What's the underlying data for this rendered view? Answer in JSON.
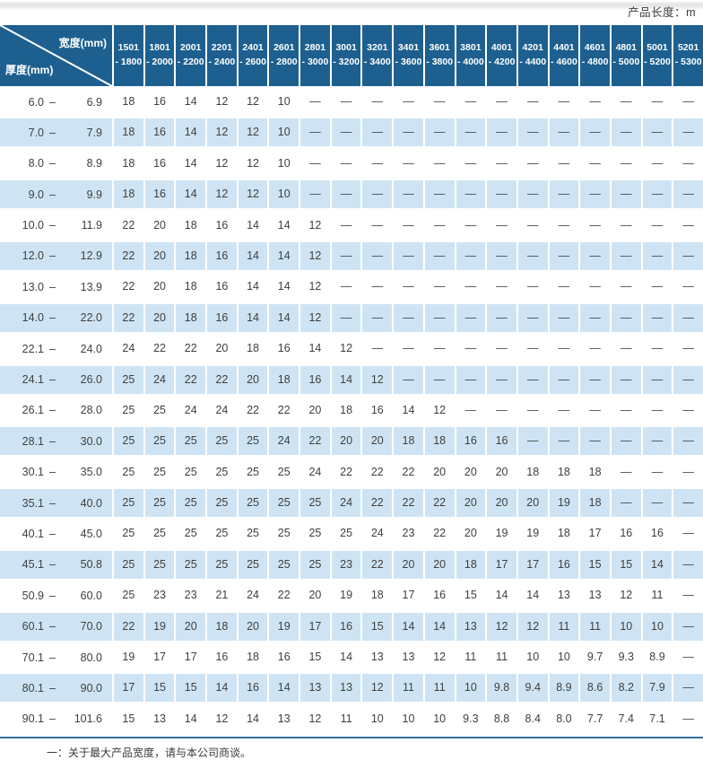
{
  "page": {
    "length_note": "产品长度：m",
    "footnote": "一：关于最大产品宽度，请与本公司商谈。"
  },
  "table": {
    "corner": {
      "width_label": "宽度(mm)",
      "thickness_label": "厚度(mm)"
    },
    "width_columns": [
      {
        "l1": "1501",
        "l2": "- 1800"
      },
      {
        "l1": "1801",
        "l2": "- 2000"
      },
      {
        "l1": "2001",
        "l2": "- 2200"
      },
      {
        "l1": "2201",
        "l2": "- 2400"
      },
      {
        "l1": "2401",
        "l2": "- 2600"
      },
      {
        "l1": "2601",
        "l2": "- 2800"
      },
      {
        "l1": "2801",
        "l2": "- 3000"
      },
      {
        "l1": "3001",
        "l2": "- 3200"
      },
      {
        "l1": "3201",
        "l2": "- 3400"
      },
      {
        "l1": "3401",
        "l2": "- 3600"
      },
      {
        "l1": "3601",
        "l2": "- 3800"
      },
      {
        "l1": "3801",
        "l2": "- 4000"
      },
      {
        "l1": "4001",
        "l2": "- 4200"
      },
      {
        "l1": "4201",
        "l2": "- 4400"
      },
      {
        "l1": "4401",
        "l2": "- 4600"
      },
      {
        "l1": "4601",
        "l2": "- 4800"
      },
      {
        "l1": "4801",
        "l2": "- 5000"
      },
      {
        "l1": "5001",
        "l2": "- 5200"
      },
      {
        "l1": "5201",
        "l2": "- 5300"
      }
    ],
    "rows": [
      {
        "lo": "6.0",
        "hi": "6.9",
        "values": [
          "18",
          "16",
          "14",
          "12",
          "12",
          "10",
          "—",
          "—",
          "—",
          "—",
          "—",
          "—",
          "—",
          "—",
          "—",
          "—",
          "—",
          "—",
          "—"
        ]
      },
      {
        "lo": "7.0",
        "hi": "7.9",
        "values": [
          "18",
          "16",
          "14",
          "12",
          "12",
          "10",
          "—",
          "—",
          "—",
          "—",
          "—",
          "—",
          "—",
          "—",
          "—",
          "—",
          "—",
          "—",
          "—"
        ]
      },
      {
        "lo": "8.0",
        "hi": "8.9",
        "values": [
          "18",
          "16",
          "14",
          "12",
          "12",
          "10",
          "—",
          "—",
          "—",
          "—",
          "—",
          "—",
          "—",
          "—",
          "—",
          "—",
          "—",
          "—",
          "—"
        ]
      },
      {
        "lo": "9.0",
        "hi": "9.9",
        "values": [
          "18",
          "16",
          "14",
          "12",
          "12",
          "10",
          "—",
          "—",
          "—",
          "—",
          "—",
          "—",
          "—",
          "—",
          "—",
          "—",
          "—",
          "—",
          "—"
        ]
      },
      {
        "lo": "10.0",
        "hi": "11.9",
        "values": [
          "22",
          "20",
          "18",
          "16",
          "14",
          "14",
          "12",
          "—",
          "—",
          "—",
          "—",
          "—",
          "—",
          "—",
          "—",
          "—",
          "—",
          "—",
          "—"
        ]
      },
      {
        "lo": "12.0",
        "hi": "12.9",
        "values": [
          "22",
          "20",
          "18",
          "16",
          "14",
          "14",
          "12",
          "—",
          "—",
          "—",
          "—",
          "—",
          "—",
          "—",
          "—",
          "—",
          "—",
          "—",
          "—"
        ]
      },
      {
        "lo": "13.0",
        "hi": "13.9",
        "values": [
          "22",
          "20",
          "18",
          "16",
          "14",
          "14",
          "12",
          "—",
          "—",
          "—",
          "—",
          "—",
          "—",
          "—",
          "—",
          "—",
          "—",
          "—",
          "—"
        ]
      },
      {
        "lo": "14.0",
        "hi": "22.0",
        "values": [
          "22",
          "20",
          "18",
          "16",
          "14",
          "14",
          "12",
          "—",
          "—",
          "—",
          "—",
          "—",
          "—",
          "—",
          "—",
          "—",
          "—",
          "—",
          "—"
        ]
      },
      {
        "lo": "22.1",
        "hi": "24.0",
        "values": [
          "24",
          "22",
          "22",
          "20",
          "18",
          "16",
          "14",
          "12",
          "—",
          "—",
          "—",
          "—",
          "—",
          "—",
          "—",
          "—",
          "—",
          "—",
          "—"
        ]
      },
      {
        "lo": "24.1",
        "hi": "26.0",
        "values": [
          "25",
          "24",
          "22",
          "22",
          "20",
          "18",
          "16",
          "14",
          "12",
          "—",
          "—",
          "—",
          "—",
          "—",
          "—",
          "—",
          "—",
          "—",
          "—"
        ]
      },
      {
        "lo": "26.1",
        "hi": "28.0",
        "values": [
          "25",
          "25",
          "24",
          "24",
          "22",
          "22",
          "20",
          "18",
          "16",
          "14",
          "12",
          "—",
          "—",
          "—",
          "—",
          "—",
          "—",
          "—",
          "—"
        ]
      },
      {
        "lo": "28.1",
        "hi": "30.0",
        "values": [
          "25",
          "25",
          "25",
          "25",
          "25",
          "24",
          "22",
          "20",
          "20",
          "18",
          "18",
          "16",
          "16",
          "—",
          "—",
          "—",
          "—",
          "—",
          "—"
        ]
      },
      {
        "lo": "30.1",
        "hi": "35.0",
        "values": [
          "25",
          "25",
          "25",
          "25",
          "25",
          "25",
          "24",
          "22",
          "22",
          "22",
          "20",
          "20",
          "20",
          "18",
          "18",
          "18",
          "—",
          "—",
          "—"
        ]
      },
      {
        "lo": "35.1",
        "hi": "40.0",
        "values": [
          "25",
          "25",
          "25",
          "25",
          "25",
          "25",
          "25",
          "24",
          "22",
          "22",
          "22",
          "20",
          "20",
          "20",
          "19",
          "18",
          "—",
          "—",
          "—"
        ]
      },
      {
        "lo": "40.1",
        "hi": "45.0",
        "values": [
          "25",
          "25",
          "25",
          "25",
          "25",
          "25",
          "25",
          "25",
          "24",
          "23",
          "22",
          "20",
          "19",
          "19",
          "18",
          "17",
          "16",
          "16",
          "—"
        ]
      },
      {
        "lo": "45.1",
        "hi": "50.8",
        "values": [
          "25",
          "25",
          "25",
          "25",
          "25",
          "25",
          "25",
          "23",
          "22",
          "20",
          "20",
          "18",
          "17",
          "17",
          "16",
          "15",
          "15",
          "14",
          "—"
        ]
      },
      {
        "lo": "50.9",
        "hi": "60.0",
        "values": [
          "25",
          "23",
          "23",
          "21",
          "24",
          "22",
          "20",
          "19",
          "18",
          "17",
          "16",
          "15",
          "14",
          "14",
          "13",
          "13",
          "12",
          "11",
          "—"
        ]
      },
      {
        "lo": "60.1",
        "hi": "70.0",
        "values": [
          "22",
          "19",
          "20",
          "18",
          "20",
          "19",
          "17",
          "16",
          "15",
          "14",
          "14",
          "13",
          "12",
          "12",
          "11",
          "11",
          "10",
          "10",
          "—"
        ]
      },
      {
        "lo": "70.1",
        "hi": "80.0",
        "values": [
          "19",
          "17",
          "17",
          "16",
          "18",
          "16",
          "15",
          "14",
          "13",
          "13",
          "12",
          "11",
          "11",
          "10",
          "10",
          "9.7",
          "9.3",
          "8.9",
          "—"
        ]
      },
      {
        "lo": "80.1",
        "hi": "90.0",
        "values": [
          "17",
          "15",
          "15",
          "14",
          "16",
          "14",
          "13",
          "13",
          "12",
          "11",
          "11",
          "10",
          "9.8",
          "9.4",
          "8.9",
          "8.6",
          "8.2",
          "7.9",
          "—"
        ]
      },
      {
        "lo": "90.1",
        "hi": "101.6",
        "values": [
          "15",
          "13",
          "14",
          "12",
          "14",
          "13",
          "12",
          "11",
          "10",
          "10",
          "10",
          "9.3",
          "8.8",
          "8.4",
          "8.0",
          "7.7",
          "7.4",
          "7.1",
          "—"
        ]
      }
    ]
  },
  "colors": {
    "header_blue": "#1d6090",
    "stripe_blue": "#cee4f4",
    "text_dark": "#3f3f3f",
    "rule_blue": "#35719f"
  }
}
